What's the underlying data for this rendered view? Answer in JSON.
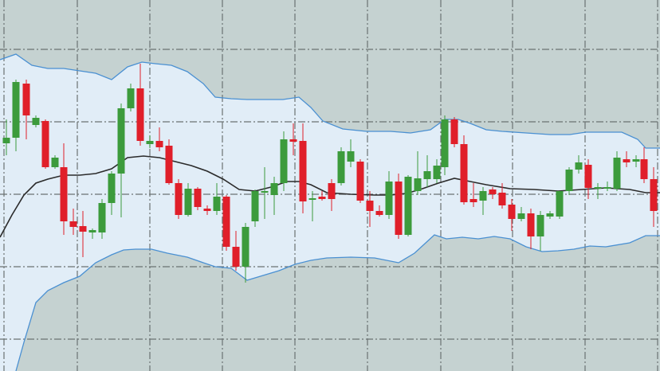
{
  "chart_data": {
    "type": "candlestick",
    "xlim": [
      0,
      828
    ],
    "ylim": [
      0,
      466
    ],
    "xticks": [
      5,
      97,
      188,
      279,
      370,
      461,
      553,
      643,
      734,
      825
    ],
    "yticks": [
      404,
      313,
      222,
      131,
      40
    ],
    "grid": true,
    "background": "#c5d2d1",
    "band_fill": "#e1edf7",
    "up_color": "#3c9b3c",
    "down_color": "#e01f2a",
    "x": [
      8,
      20,
      33,
      45,
      57,
      69,
      80,
      92,
      104,
      116,
      128,
      140,
      152,
      164,
      176,
      188,
      200,
      212,
      224,
      236,
      248,
      260,
      272,
      284,
      296,
      308,
      320,
      332,
      344,
      356,
      368,
      380,
      392,
      404,
      416,
      428,
      440,
      452,
      464,
      476,
      488,
      500,
      512,
      524,
      536,
      548,
      558,
      570,
      582,
      594,
      606,
      618,
      630,
      642,
      654,
      666,
      678,
      690,
      702,
      714,
      726,
      738,
      750,
      762,
      774,
      786,
      798,
      808,
      820
    ],
    "open": [
      286,
      293,
      361,
      309,
      314,
      256,
      256,
      188,
      182,
      174,
      174,
      211,
      248,
      330,
      355,
      285,
      289,
      283,
      236,
      196,
      229,
      204,
      201,
      219,
      156,
      131,
      188,
      224,
      221,
      236,
      291,
      289,
      215,
      219,
      236,
      236,
      263,
      263,
      214,
      201,
      196,
      238,
      171,
      226,
      241,
      241,
      256,
      316,
      285,
      216,
      214,
      228,
      224,
      209,
      191,
      198,
      169,
      194,
      194,
      226,
      253,
      259,
      229,
      229,
      229,
      266,
      263,
      266,
      241
    ],
    "high": [
      316,
      366,
      366,
      321,
      316,
      271,
      286,
      204,
      201,
      179,
      216,
      251,
      336,
      361,
      386,
      296,
      306,
      291,
      241,
      236,
      231,
      208,
      236,
      221,
      176,
      186,
      228,
      256,
      244,
      301,
      311,
      311,
      226,
      226,
      241,
      281,
      291,
      266,
      226,
      208,
      251,
      248,
      246,
      276,
      271,
      266,
      321,
      319,
      296,
      236,
      231,
      231,
      236,
      216,
      206,
      204,
      201,
      201,
      226,
      256,
      271,
      266,
      236,
      238,
      276,
      276,
      271,
      281,
      256
    ],
    "low": [
      271,
      276,
      291,
      306,
      254,
      254,
      171,
      171,
      143,
      166,
      166,
      196,
      193,
      326,
      283,
      280,
      276,
      234,
      191,
      194,
      202,
      196,
      196,
      151,
      126,
      111,
      181,
      191,
      196,
      226,
      271,
      198,
      188,
      214,
      201,
      233,
      256,
      211,
      181,
      194,
      191,
      166,
      169,
      221,
      231,
      236,
      246,
      281,
      209,
      206,
      196,
      216,
      204,
      176,
      188,
      153,
      151,
      191,
      191,
      221,
      248,
      216,
      216,
      226,
      226,
      256,
      256,
      236,
      181
    ],
    "close": [
      293,
      363,
      321,
      318,
      256,
      268,
      188,
      181,
      175,
      177,
      211,
      248,
      330,
      355,
      289,
      289,
      281,
      236,
      196,
      229,
      206,
      201,
      219,
      156,
      131,
      181,
      226,
      226,
      236,
      291,
      288,
      213,
      217,
      216,
      216,
      276,
      276,
      214,
      201,
      196,
      238,
      171,
      244,
      242,
      251,
      258,
      316,
      285,
      212,
      212,
      226,
      222,
      208,
      191,
      198,
      169,
      196,
      198,
      226,
      253,
      262,
      230,
      231,
      231,
      268,
      262,
      266,
      241,
      201
    ],
    "lines": [
      {
        "color": "#4a90d2",
        "x": [
          0,
          20,
          40,
          60,
          80,
          100,
          120,
          140,
          160,
          178,
          195,
          215,
          235,
          255,
          270,
          290,
          310,
          330,
          355,
          375,
          390,
          405,
          430,
          460,
          490,
          515,
          540,
          558,
          575,
          590,
          610,
          630,
          660,
          690,
          715,
          735,
          760,
          780,
          800,
          810,
          828
        ],
        "values": [
          391,
          398,
          384,
          380,
          380,
          377,
          374,
          366,
          382,
          388,
          386,
          384,
          376,
          361,
          344,
          342,
          341,
          341,
          341,
          344,
          331,
          314,
          304,
          301,
          301,
          299,
          303,
          316,
          316,
          311,
          303,
          301,
          299,
          297,
          297,
          300,
          300,
          300,
          291,
          280,
          280
        ]
      },
      {
        "color": "#2b2b2b",
        "x": [
          0,
          15,
          30,
          45,
          60,
          80,
          100,
          120,
          140,
          160,
          180,
          200,
          220,
          240,
          260,
          280,
          300,
          320,
          340,
          360,
          375,
          390,
          410,
          440,
          470,
          490,
          510,
          530,
          550,
          570,
          590,
          610,
          640,
          670,
          700,
          730,
          760,
          790,
          810,
          828
        ],
        "values": [
          168,
          196,
          221,
          236,
          241,
          246,
          246,
          248,
          254,
          268,
          270,
          268,
          263,
          258,
          251,
          241,
          228,
          226,
          231,
          238,
          238,
          234,
          224,
          222,
          221,
          221,
          223,
          229,
          236,
          242,
          238,
          234,
          229,
          228,
          226,
          228,
          230,
          228,
          224,
          224
        ]
      },
      {
        "color": "#4a90d2",
        "x": [
          20,
          30,
          45,
          60,
          80,
          100,
          120,
          140,
          155,
          170,
          190,
          210,
          235,
          255,
          270,
          290,
          310,
          330,
          350,
          370,
          390,
          410,
          440,
          470,
          500,
          520,
          545,
          560,
          580,
          600,
          620,
          640,
          660,
          680,
          700,
          720,
          740,
          760,
          790,
          810,
          828
        ],
        "values": [
          0,
          36,
          86,
          101,
          111,
          119,
          136,
          146,
          152,
          153,
          153,
          148,
          143,
          136,
          131,
          129,
          114,
          120,
          126,
          134,
          139,
          142,
          143,
          142,
          136,
          148,
          171,
          166,
          168,
          166,
          169,
          166,
          156,
          150,
          151,
          153,
          157,
          156,
          161,
          170,
          170
        ]
      }
    ]
  }
}
